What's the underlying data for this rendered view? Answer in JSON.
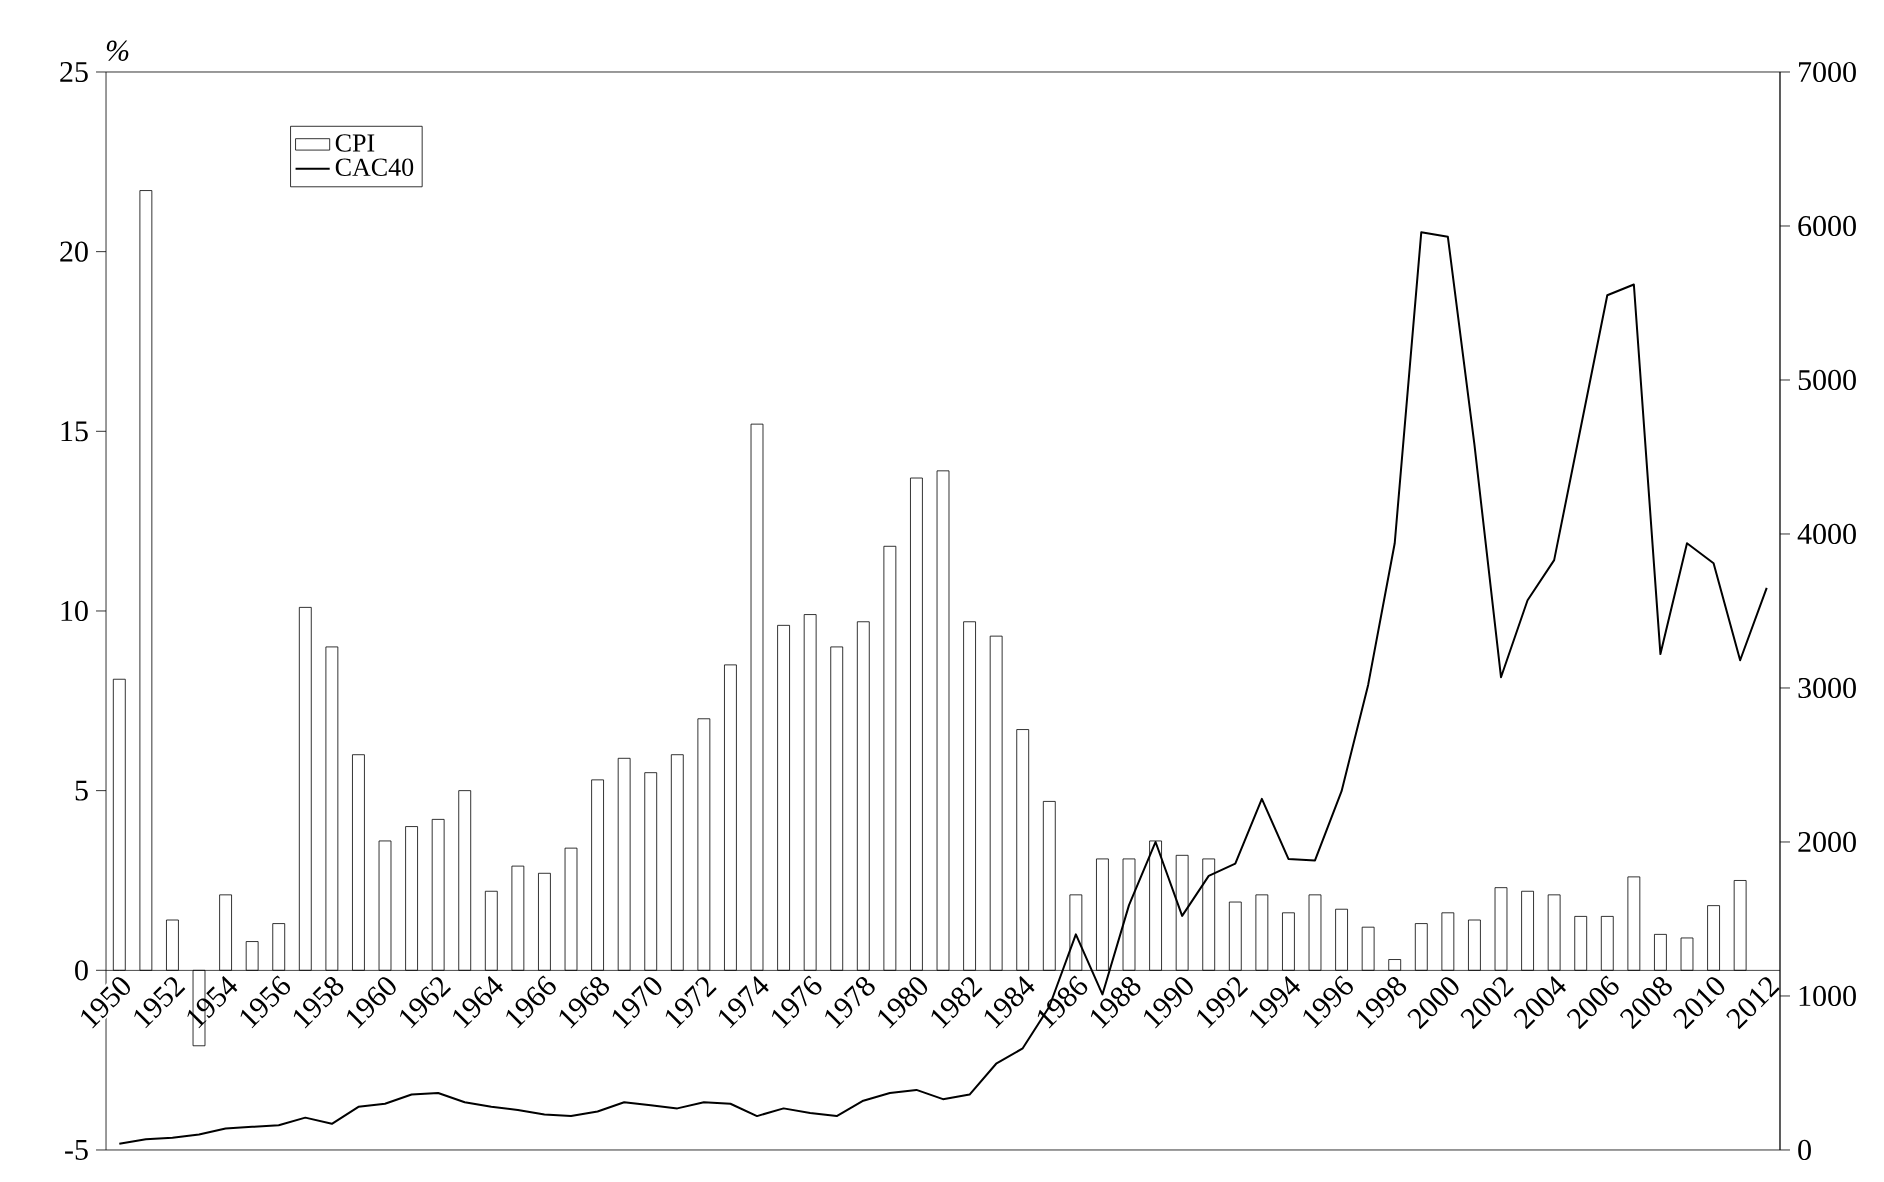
{
  "chart_data": {
    "type": "bar",
    "ylabel": "%",
    "categories": [
      "1950",
      null,
      "1952",
      null,
      "1954",
      null,
      "1956",
      null,
      "1958",
      null,
      "1960",
      null,
      "1962",
      null,
      "1964",
      null,
      "1966",
      null,
      "1968",
      null,
      "1970",
      null,
      "1972",
      null,
      "1974",
      null,
      "1976",
      null,
      "1978",
      null,
      "1980",
      null,
      "1982",
      null,
      "1984",
      null,
      "1986",
      null,
      "1988",
      null,
      "1990",
      null,
      "1992",
      null,
      "1994",
      null,
      "1996",
      null,
      "1998",
      null,
      "2000",
      null,
      "2002",
      null,
      "2004",
      null,
      "2006",
      null,
      "2008",
      null,
      "2010",
      null,
      "2012"
    ],
    "series": [
      {
        "name": "CPI",
        "color": "#ffffff",
        "values": [
          8.1,
          21.7,
          1.4,
          -2.1,
          2.1,
          0.8,
          1.3,
          10.1,
          9.0,
          6.0,
          3.6,
          4.0,
          4.2,
          5.0,
          2.2,
          2.9,
          2.7,
          3.4,
          5.3,
          5.9,
          5.5,
          6.0,
          7.0,
          8.5,
          15.2,
          9.6,
          9.9,
          9.0,
          9.7,
          11.8,
          13.7,
          13.9,
          9.7,
          9.3,
          6.7,
          4.7,
          2.1,
          3.1,
          3.1,
          3.6,
          3.2,
          3.1,
          1.9,
          2.1,
          1.6,
          2.1,
          1.7,
          1.2,
          0.3,
          1.3,
          1.6,
          1.4,
          2.3,
          2.2,
          2.1,
          1.5,
          1.5,
          2.6,
          1.0,
          0.9,
          1.8,
          2.5,
          null
        ]
      },
      {
        "name": "CAC40",
        "type": "line",
        "axis": "y2",
        "color": "#000000",
        "values": [
          40,
          70,
          80,
          100,
          140,
          150,
          160,
          210,
          170,
          280,
          300,
          360,
          370,
          310,
          280,
          260,
          230,
          220,
          250,
          310,
          290,
          270,
          310,
          300,
          220,
          270,
          240,
          220,
          320,
          370,
          390,
          330,
          360,
          560,
          660,
          930,
          1400,
          1010,
          1590,
          2000,
          1520,
          1780,
          1860,
          2280,
          1890,
          1880,
          2330,
          3020,
          3940,
          5960,
          5930,
          4580,
          3070,
          3570,
          3830,
          4690,
          5550,
          5620,
          3220,
          3940,
          3810,
          3180,
          3650
        ]
      }
    ],
    "ylim": [
      -5,
      25
    ],
    "yticks": [
      -5,
      0,
      5,
      10,
      15,
      20,
      25
    ],
    "y2lim": [
      0,
      7000
    ],
    "y2ticks": [
      0,
      1000,
      2000,
      3000,
      4000,
      5000,
      6000,
      7000
    ],
    "legend": "top left"
  }
}
